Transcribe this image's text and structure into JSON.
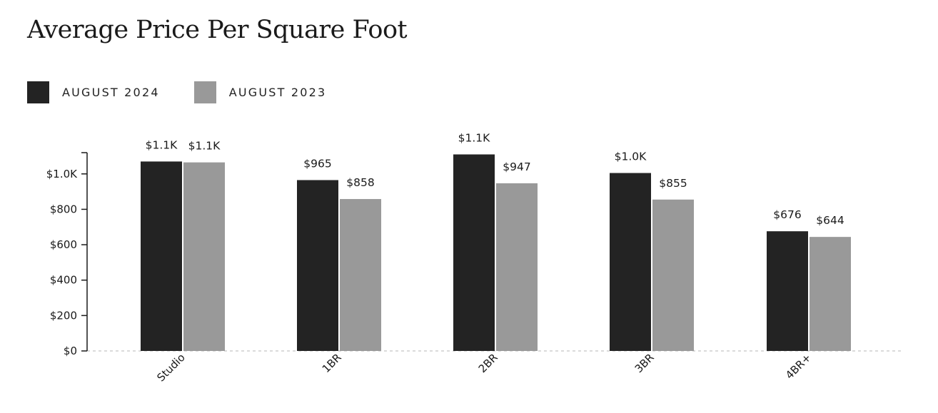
{
  "chart_data": {
    "type": "bar",
    "title": "Average Price Per Square Foot",
    "categories": [
      "Studio",
      "1BR",
      "2BR",
      "3BR",
      "4BR+"
    ],
    "series": [
      {
        "name": "AUGUST 2024",
        "color": "#232323",
        "values": [
          1070,
          965,
          1110,
          1005,
          676
        ],
        "labels": [
          "$1.1K",
          "$965",
          "$1.1K",
          "$1.0K",
          "$676"
        ]
      },
      {
        "name": "AUGUST 2023",
        "color": "#999999",
        "values": [
          1065,
          858,
          947,
          855,
          644
        ],
        "labels": [
          "$1.1K",
          "$858",
          "$947",
          "$855",
          "$644"
        ]
      }
    ],
    "y_ticks": [
      {
        "value": 0,
        "label": "$0"
      },
      {
        "value": 200,
        "label": "$200"
      },
      {
        "value": 400,
        "label": "$400"
      },
      {
        "value": 600,
        "label": "$600"
      },
      {
        "value": 800,
        "label": "$800"
      },
      {
        "value": 1000,
        "label": "$1.0K"
      }
    ],
    "ylim": [
      0,
      1120
    ],
    "legend_position": "top-left",
    "grid": false,
    "baseline_style": "dashed"
  }
}
